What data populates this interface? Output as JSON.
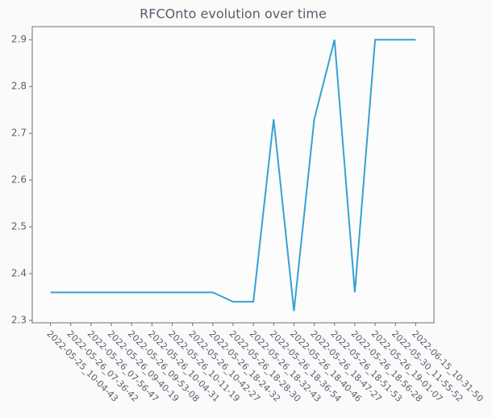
{
  "chart_data": {
    "type": "line",
    "title": "RFCOnto evolution over time",
    "categories": [
      "2022-05-25_10-04-43",
      "2022-05-26_07-36-42",
      "2022-05-26_07-56-47",
      "2022-05-26_09-40-19",
      "2022-05-26_09-53-08",
      "2022-05-26_10-04-31",
      "2022-05-26_10-11-19",
      "2022-05-26_10-42-27",
      "2022-05-26_18-24-32",
      "2022-05-26_18-28-30",
      "2022-05-26_18-32-43",
      "2022-05-26_18-36-54",
      "2022-05-26_18-40-46",
      "2022-05-26_18-47-27",
      "2022-05-26_18-51-53",
      "2022-05-26_18-56-28",
      "2022-05-26_19-01-07",
      "2022-05-30_11-55-52",
      "2022-06-15_10-31-50"
    ],
    "values": [
      2.36,
      2.36,
      2.36,
      2.36,
      2.36,
      2.36,
      2.36,
      2.36,
      2.36,
      2.34,
      2.34,
      2.73,
      2.32,
      2.73,
      2.9,
      2.36,
      2.9,
      2.9,
      2.9
    ],
    "color": "#35a2d2",
    "ylim": [
      2.295,
      2.928
    ],
    "yticks": [
      2.3,
      2.4,
      2.5,
      2.6,
      2.7,
      2.8,
      2.9
    ],
    "grid": false
  }
}
